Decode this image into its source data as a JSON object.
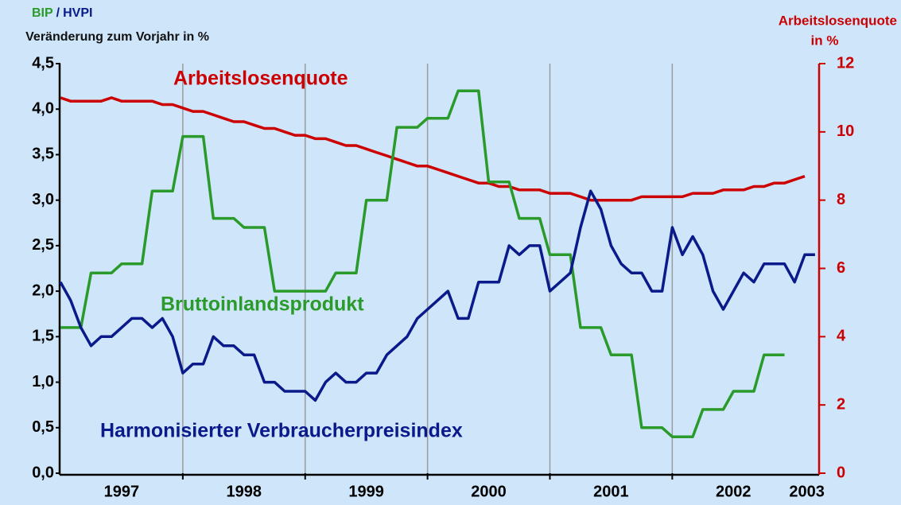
{
  "chart_data": {
    "type": "line",
    "title": [
      "BIP",
      "/",
      "HVPI"
    ],
    "ylabel": "Veränderung zum Vorjahr in %",
    "y2label": [
      "Arbeitslosenquote",
      "in %"
    ],
    "x": [
      1997,
      1997.083,
      1997.167,
      1997.25,
      1997.333,
      1997.417,
      1997.5,
      1997.583,
      1997.667,
      1997.75,
      1997.833,
      1997.917,
      1998,
      1998.083,
      1998.167,
      1998.25,
      1998.333,
      1998.417,
      1998.5,
      1998.583,
      1998.667,
      1998.75,
      1998.833,
      1998.917,
      1999,
      1999.083,
      1999.167,
      1999.25,
      1999.333,
      1999.417,
      1999.5,
      1999.583,
      1999.667,
      1999.75,
      1999.833,
      1999.917,
      2000,
      2000.083,
      2000.167,
      2000.25,
      2000.333,
      2000.417,
      2000.5,
      2000.583,
      2000.667,
      2000.75,
      2000.833,
      2000.917,
      2001,
      2001.083,
      2001.167,
      2001.25,
      2001.333,
      2001.417,
      2001.5,
      2001.583,
      2001.667,
      2001.75,
      2001.833,
      2001.917,
      2002,
      2002.083,
      2002.167,
      2002.25,
      2002.333,
      2002.417,
      2002.5,
      2002.583,
      2002.667,
      2002.75,
      2002.833,
      2002.917,
      2003,
      2003.083,
      2003.167
    ],
    "series": [
      {
        "name": "Arbeitslosenquote",
        "color": "#cc0000",
        "axis": "y2",
        "values": [
          11.0,
          10.9,
          10.9,
          10.9,
          10.9,
          11.0,
          10.9,
          10.9,
          10.9,
          10.9,
          10.8,
          10.8,
          10.7,
          10.6,
          10.6,
          10.5,
          10.4,
          10.3,
          10.3,
          10.2,
          10.1,
          10.1,
          10.0,
          9.9,
          9.9,
          9.8,
          9.8,
          9.7,
          9.6,
          9.6,
          9.5,
          9.4,
          9.3,
          9.2,
          9.1,
          9.0,
          9.0,
          8.9,
          8.8,
          8.7,
          8.6,
          8.5,
          8.5,
          8.4,
          8.4,
          8.3,
          8.3,
          8.3,
          8.2,
          8.2,
          8.2,
          8.1,
          8.0,
          8.0,
          8.0,
          8.0,
          8.0,
          8.1,
          8.1,
          8.1,
          8.1,
          8.1,
          8.2,
          8.2,
          8.2,
          8.3,
          8.3,
          8.3,
          8.4,
          8.4,
          8.5,
          8.5,
          8.6,
          8.7,
          null
        ]
      },
      {
        "name": "Bruttoinlandsprodukt",
        "color": "#2a9a2a",
        "values": [
          1.6,
          1.6,
          1.6,
          2.2,
          2.2,
          2.2,
          2.3,
          2.3,
          2.3,
          3.1,
          3.1,
          3.1,
          3.7,
          3.7,
          3.7,
          2.8,
          2.8,
          2.8,
          2.7,
          2.7,
          2.7,
          2.0,
          2.0,
          2.0,
          2.0,
          2.0,
          2.0,
          2.2,
          2.2,
          2.2,
          3.0,
          3.0,
          3.0,
          3.8,
          3.8,
          3.8,
          3.9,
          3.9,
          3.9,
          4.2,
          4.2,
          4.2,
          3.2,
          3.2,
          3.2,
          2.8,
          2.8,
          2.8,
          2.4,
          2.4,
          2.4,
          1.6,
          1.6,
          1.6,
          1.3,
          1.3,
          1.3,
          0.5,
          0.5,
          0.5,
          0.4,
          0.4,
          0.4,
          0.7,
          0.7,
          0.7,
          0.9,
          0.9,
          0.9,
          1.3,
          1.3,
          1.3,
          null,
          null,
          null
        ]
      },
      {
        "name": "Harmonisierter Verbraucherpreisindex",
        "color": "#0a1a8a",
        "values": [
          2.1,
          1.9,
          1.6,
          1.4,
          1.5,
          1.5,
          1.6,
          1.7,
          1.7,
          1.6,
          1.7,
          1.5,
          1.1,
          1.2,
          1.2,
          1.5,
          1.4,
          1.4,
          1.3,
          1.3,
          1.0,
          1.0,
          0.9,
          0.9,
          0.9,
          0.8,
          1.0,
          1.1,
          1.0,
          1.0,
          1.1,
          1.1,
          1.3,
          1.4,
          1.5,
          1.7,
          1.8,
          1.9,
          2.0,
          1.7,
          1.7,
          2.1,
          2.1,
          2.1,
          2.5,
          2.4,
          2.5,
          2.5,
          2.0,
          2.1,
          2.2,
          2.7,
          3.1,
          2.9,
          2.5,
          2.3,
          2.2,
          2.2,
          2.0,
          2.0,
          2.7,
          2.4,
          2.6,
          2.4,
          2.0,
          1.8,
          2.0,
          2.2,
          2.1,
          2.3,
          2.3,
          2.3,
          2.1,
          2.4,
          2.4
        ]
      }
    ],
    "xlim": [
      1997,
      2003.2
    ],
    "xticks": [
      {
        "value": 1997.5,
        "label": "1997"
      },
      {
        "value": 1998.5,
        "label": "1998"
      },
      {
        "value": 1999.5,
        "label": "1999"
      },
      {
        "value": 2000.5,
        "label": "2000"
      },
      {
        "value": 2001.5,
        "label": "2001"
      },
      {
        "value": 2002.5,
        "label": "2002"
      },
      {
        "value": 2003.1,
        "label": "2003"
      }
    ],
    "xgrid": [
      1998,
      1999,
      2000,
      2001,
      2002
    ],
    "ylim": [
      0,
      4.5
    ],
    "yticks": [
      {
        "value": 0,
        "label": "0,0"
      },
      {
        "value": 0.5,
        "label": "0,5"
      },
      {
        "value": 1,
        "label": "1,0"
      },
      {
        "value": 1.5,
        "label": "1,5"
      },
      {
        "value": 2,
        "label": "2,0"
      },
      {
        "value": 2.5,
        "label": "2,5"
      },
      {
        "value": 3,
        "label": "3,0"
      },
      {
        "value": 3.5,
        "label": "3,5"
      },
      {
        "value": 4,
        "label": "4,0"
      },
      {
        "value": 4.5,
        "label": "4,5"
      }
    ],
    "y2lim": [
      0,
      12
    ],
    "y2ticks": [
      0,
      2,
      4,
      6,
      8,
      10,
      12
    ]
  }
}
